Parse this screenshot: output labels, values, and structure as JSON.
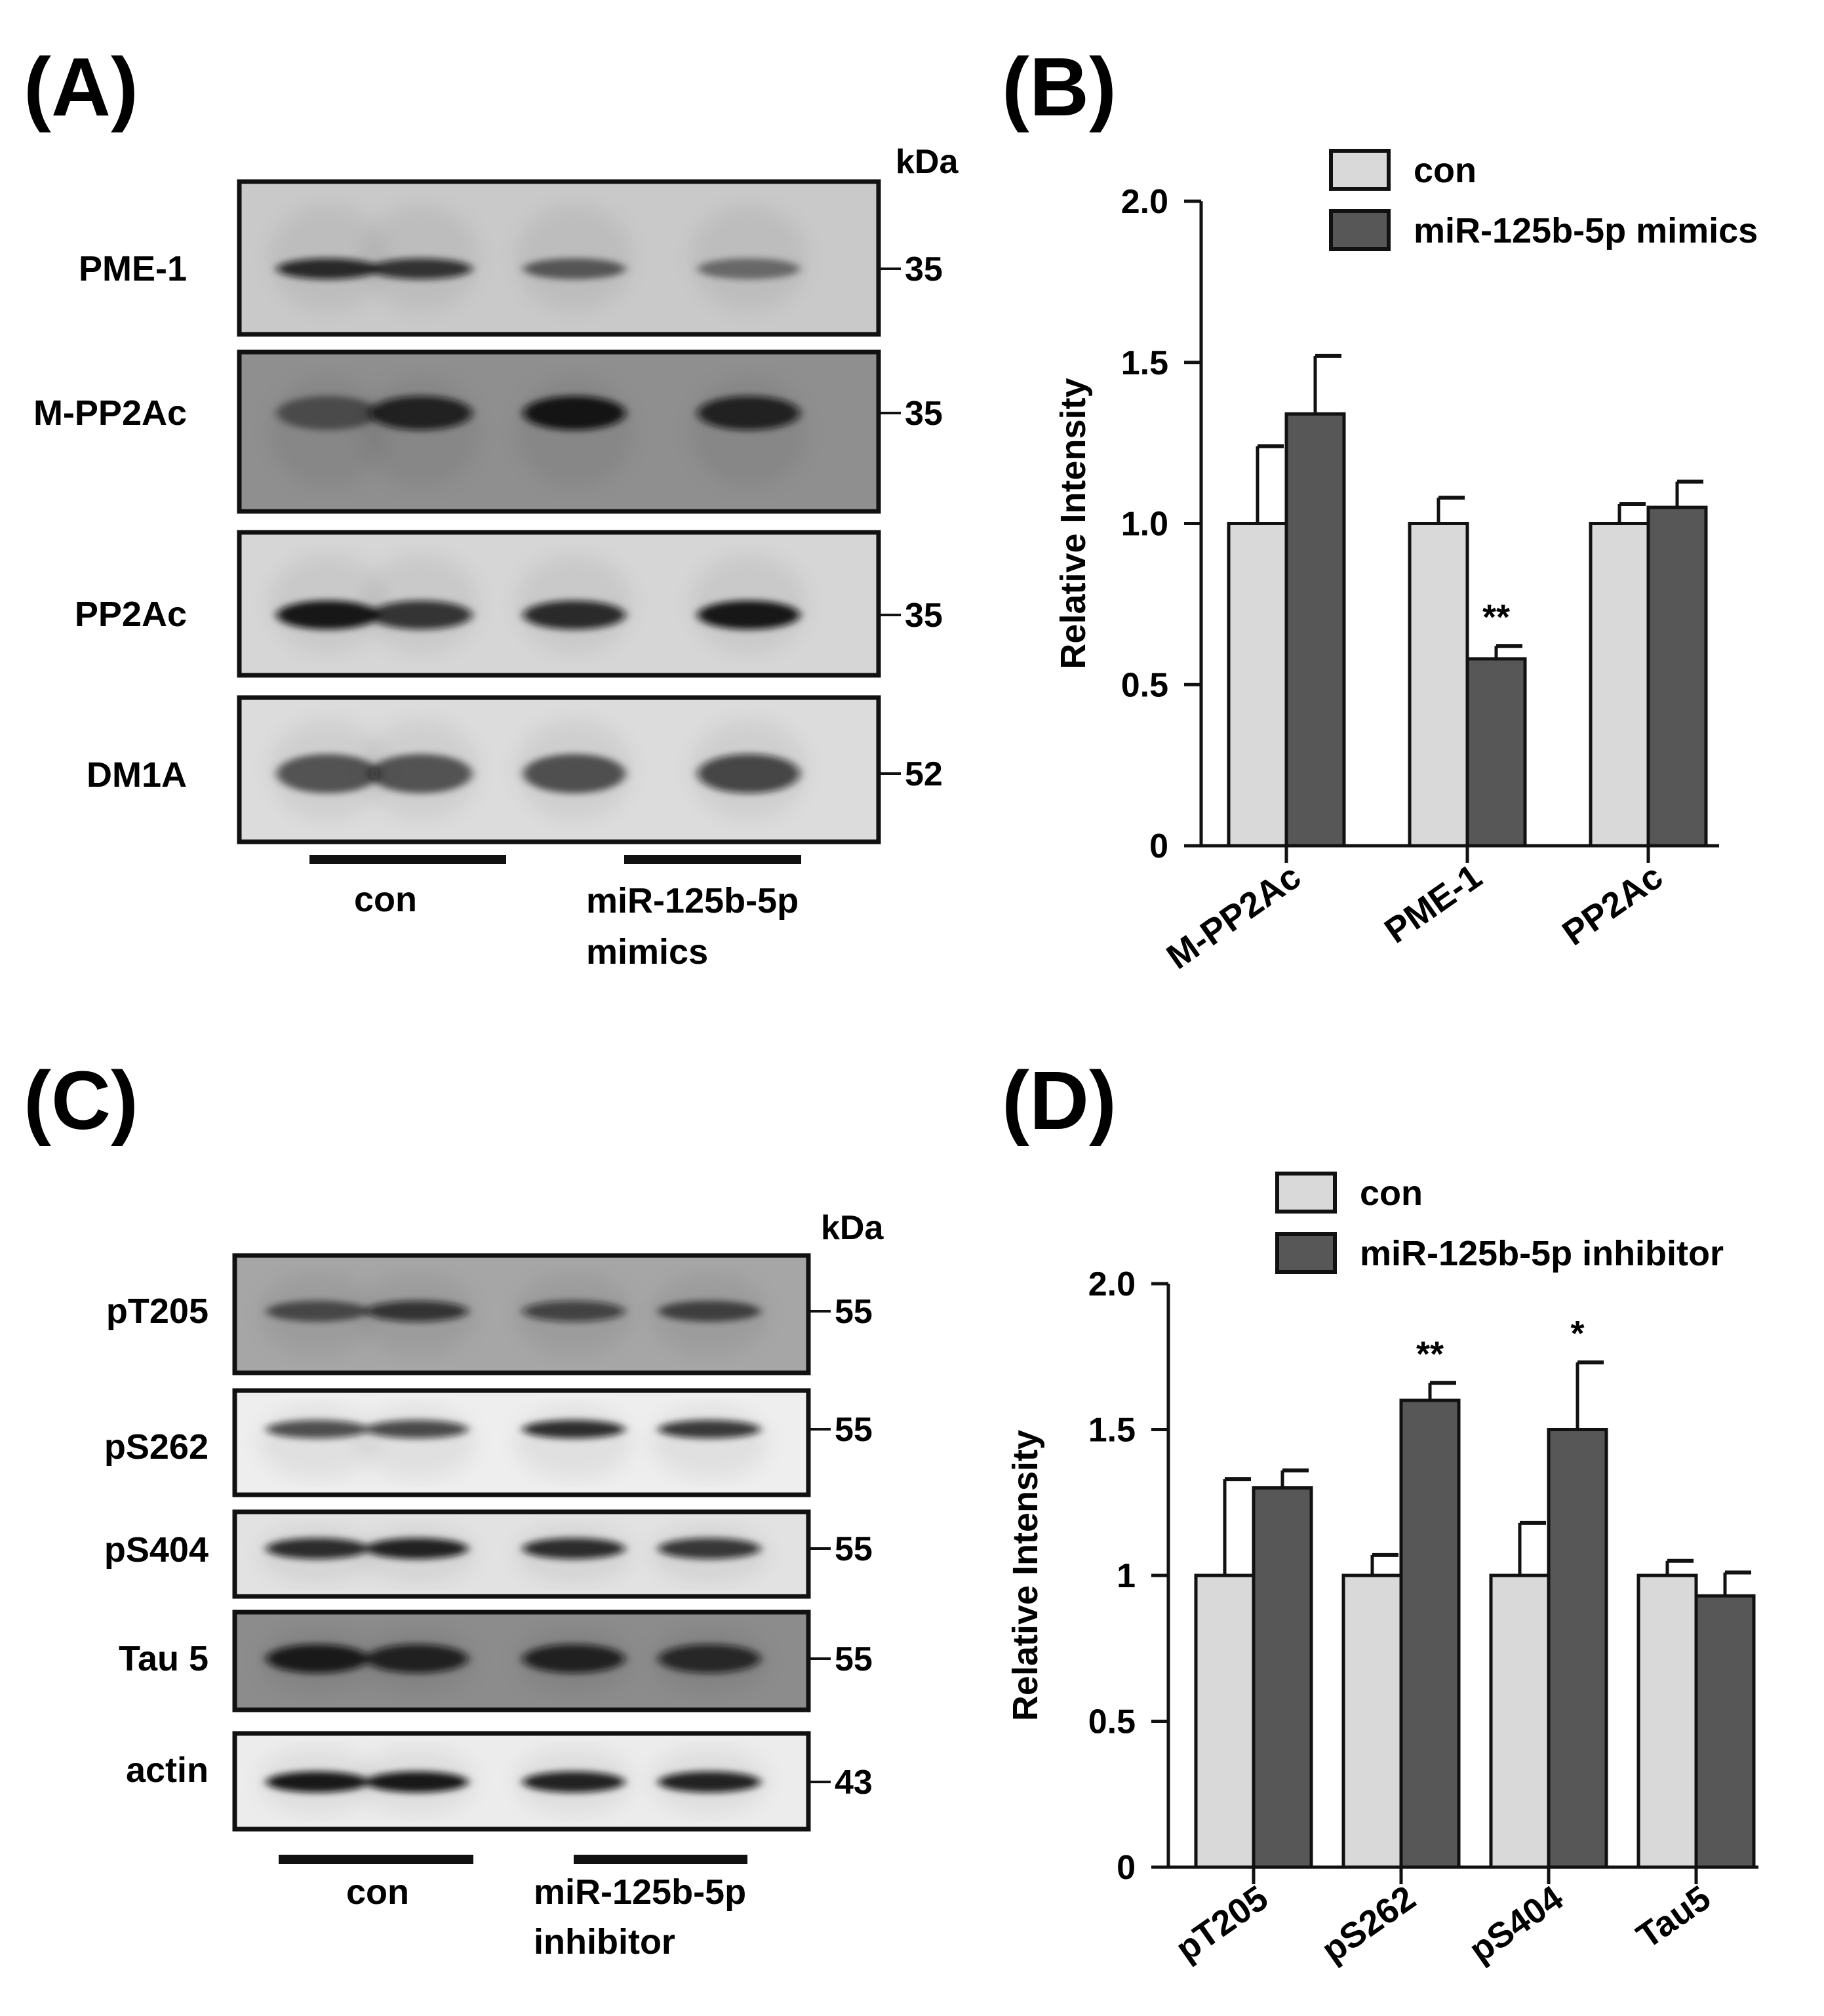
{
  "panels": {
    "A": {
      "letter": "(A)",
      "kda": "kDa",
      "rows": [
        {
          "label": "PME-1",
          "mw": "35",
          "intensity": [
            0.85,
            0.8,
            0.55,
            0.45
          ],
          "bg": "#c9c9c9"
        },
        {
          "label": "M-PP2Ac",
          "mw": "35",
          "intensity": [
            0.45,
            0.85,
            0.95,
            0.85
          ],
          "bg": "#8f8f8f"
        },
        {
          "label": "PP2Ac",
          "mw": "35",
          "intensity": [
            0.95,
            0.8,
            0.85,
            0.95
          ],
          "bg": "#d6d6d6"
        },
        {
          "label": "DM1A",
          "mw": "52",
          "intensity": [
            0.6,
            0.6,
            0.62,
            0.72
          ],
          "bg": "#dcdcdc"
        }
      ],
      "groups": [
        "con",
        "miR-125b-5p",
        "mimics"
      ]
    },
    "C": {
      "letter": "(C)",
      "kda": "kDa",
      "rows": [
        {
          "label": "pT205",
          "mw": "55",
          "intensity": [
            0.55,
            0.75,
            0.65,
            0.6
          ],
          "bg": "#a6a6a6"
        },
        {
          "label": "pS262",
          "mw": "55",
          "intensity": [
            0.7,
            0.72,
            0.85,
            0.8
          ],
          "bg": "#eeeeee"
        },
        {
          "label": "pS404",
          "mw": "55",
          "intensity": [
            0.85,
            0.9,
            0.85,
            0.8
          ],
          "bg": "#e2e2e2"
        },
        {
          "label": "Tau 5",
          "mw": "55",
          "intensity": [
            0.9,
            0.85,
            0.85,
            0.8
          ],
          "bg": "#8c8c8c"
        },
        {
          "label": "actin",
          "mw": "43",
          "intensity": [
            0.95,
            0.95,
            0.9,
            0.9
          ],
          "bg": "#ececec"
        }
      ],
      "groups": [
        "con",
        "miR-125b-5p",
        "inhibitor"
      ]
    },
    "B": {
      "letter": "(B)"
    },
    "D": {
      "letter": "(D)"
    }
  },
  "colors": {
    "con": "#d9d9d9",
    "treated": "#575757",
    "axis": "#111111"
  },
  "chart_data": [
    {
      "type": "bar",
      "panel": "B",
      "categories": [
        "M-PP2Ac",
        "PME-1",
        "PP2Ac"
      ],
      "series": [
        {
          "name": "con",
          "values": [
            1.0,
            1.0,
            1.0
          ],
          "errors": [
            0.24,
            0.08,
            0.06
          ]
        },
        {
          "name": "miR-125b-5p mimics",
          "values": [
            1.34,
            0.58,
            1.05
          ],
          "errors": [
            0.18,
            0.04,
            0.08
          ]
        }
      ],
      "significance": [
        {
          "category": "PME-1",
          "series": 1,
          "label": "**"
        }
      ],
      "ylabel": "Relative Intensity",
      "ylim": [
        0,
        2.0
      ],
      "yticks": [
        "0",
        "0.5",
        "1.0",
        "1.5",
        "2.0"
      ],
      "ytick_values": [
        0,
        0.5,
        1.0,
        1.5,
        2.0
      ],
      "legend": "top-right",
      "grid": false
    },
    {
      "type": "bar",
      "panel": "D",
      "categories": [
        "pT205",
        "pS262",
        "pS404",
        "Tau5"
      ],
      "series": [
        {
          "name": "con",
          "values": [
            1.0,
            1.0,
            1.0,
            1.0
          ],
          "errors": [
            0.33,
            0.07,
            0.18,
            0.05
          ]
        },
        {
          "name": "miR-125b-5p inhibitor",
          "values": [
            1.3,
            1.6,
            1.5,
            0.93
          ],
          "errors": [
            0.06,
            0.06,
            0.23,
            0.08
          ]
        }
      ],
      "significance": [
        {
          "category": "pS262",
          "series": 1,
          "label": "**"
        },
        {
          "category": "pS404",
          "series": 1,
          "label": "*"
        }
      ],
      "ylabel": "Relative Intensity",
      "ylim": [
        0,
        2.0
      ],
      "yticks": [
        "0",
        "0.5",
        "1",
        "1.5",
        "2.0"
      ],
      "ytick_values": [
        0,
        0.5,
        1,
        1.5,
        2.0
      ],
      "legend": "top-right",
      "grid": false
    }
  ]
}
